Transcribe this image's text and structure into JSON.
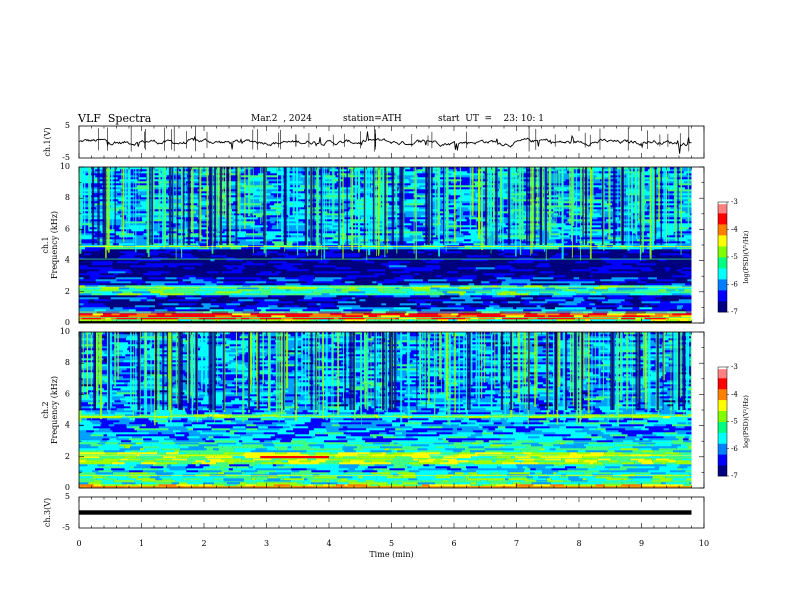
{
  "header": {
    "title": "VLF  Spectra",
    "date": "Mar.2  , 2024",
    "station": "station=ATH",
    "start": "start  UT  =    23: 10: 1"
  },
  "chart_data": [
    {
      "type": "line",
      "name": "ch1-waveform",
      "ylabel": "ch.1(V)",
      "ylim": [
        -5,
        5
      ],
      "yticks": [
        "5",
        "-5"
      ],
      "xlim": [
        0,
        10
      ],
      "baseline": 0,
      "color": "#000000"
    },
    {
      "type": "heatmap",
      "name": "ch1-spectrogram",
      "ylabel": "ch.1\nFrequency  (kHz)",
      "ylabel_lines": [
        "ch.1",
        "Frequency  (kHz)"
      ],
      "ylim": [
        0,
        10
      ],
      "yticks": [
        "0",
        "2",
        "4",
        "6",
        "8",
        "10"
      ],
      "xlim": [
        0,
        10
      ],
      "colorbar": {
        "label": "log(PSD)(V²/Hz)",
        "range": [
          -7,
          -3
        ],
        "ticks": [
          "-3",
          "-4",
          "-5",
          "-6",
          "-7"
        ]
      }
    },
    {
      "type": "heatmap",
      "name": "ch2-spectrogram",
      "ylabel_lines": [
        "ch.2",
        "Frequency  (kHz)"
      ],
      "ylim": [
        0,
        10
      ],
      "yticks": [
        "0",
        "2",
        "4",
        "6",
        "8",
        "10"
      ],
      "xlim": [
        0,
        10
      ],
      "colorbar": {
        "label": "log(PSD)(V²/Hz)",
        "range": [
          -7,
          -3
        ],
        "ticks": [
          "-3",
          "-4",
          "-5",
          "-6",
          "-7"
        ]
      }
    },
    {
      "type": "line",
      "name": "ch3-waveform",
      "ylabel": "ch.3(V)",
      "ylim": [
        -5,
        5
      ],
      "yticks": [
        "5",
        "-5"
      ],
      "xlim": [
        0,
        10
      ],
      "baseline": 0,
      "color": "#000000"
    }
  ],
  "xaxis": {
    "label": "Time  (min)",
    "ticks": [
      "0",
      "1",
      "2",
      "3",
      "4",
      "5",
      "6",
      "7",
      "8",
      "9",
      "10"
    ],
    "data_end": 9.8
  },
  "colors": {
    "colormap": [
      "#00007f",
      "#0000ff",
      "#00a0ff",
      "#00ffff",
      "#40ff80",
      "#a0ff00",
      "#ffff00",
      "#ff8000",
      "#ff0000",
      "#ffffff"
    ]
  }
}
